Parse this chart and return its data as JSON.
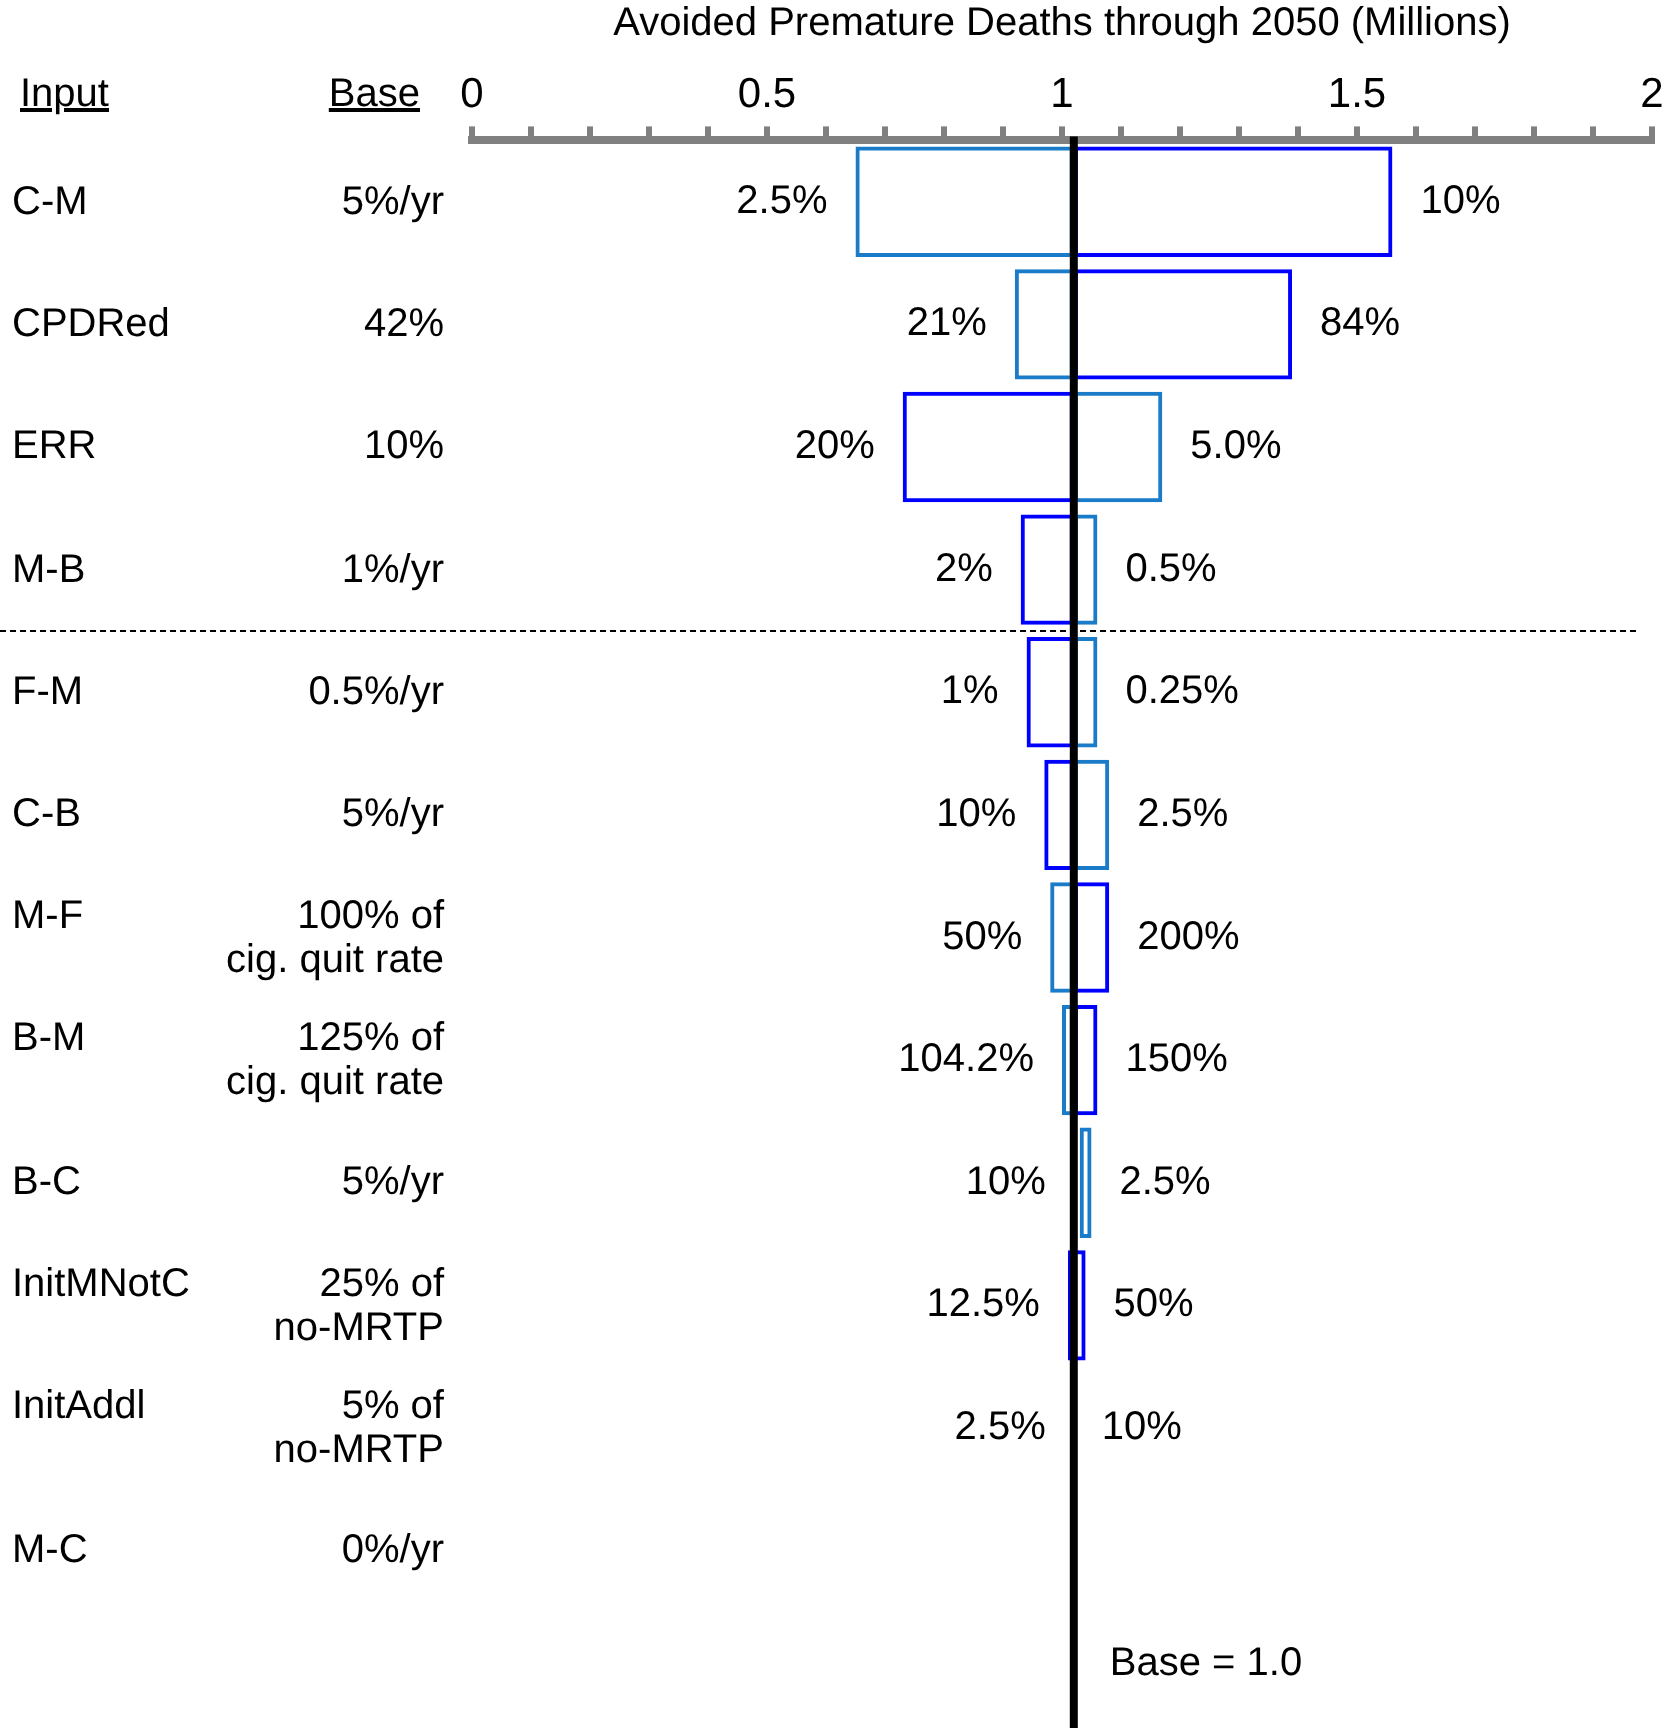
{
  "chart_data": {
    "type": "bar",
    "orientation": "horizontal",
    "xlabel": "Avoided Premature Deaths through 2050 (Millions)",
    "categories": [
      "C-M",
      "CPDRed",
      "ERR",
      "M-B",
      "F-M",
      "C-B",
      "M-F",
      "B-M",
      "B-C",
      "InitMNotC",
      "InitAddl",
      "M-C"
    ],
    "series": [
      {
        "base": [
          1.02,
          1.02,
          1.02,
          1.02,
          1.02,
          1.02,
          1.02,
          1.02,
          null,
          null,
          null,
          null
        ],
        "values": [
          -0.37,
          -0.1,
          -0.29,
          -0.09,
          -0.08,
          -0.05,
          -0.04,
          -0.02,
          null,
          null,
          null,
          null
        ],
        "colors": [
          "#1a7cc8",
          "#1a7cc8",
          "#0000ff",
          "#0000ff",
          "#0000ff",
          "#0000ff",
          "#1a7cc8",
          "#1a7cc8",
          "#0000ff",
          "#0000ff",
          "#0000ff",
          "#0000ff"
        ]
      },
      {
        "base": [
          1.02,
          1.02,
          1.02,
          1.02,
          1.02,
          1.02,
          1.02,
          1.02,
          1.03,
          1.01,
          null,
          null
        ],
        "values": [
          0.54,
          0.37,
          0.15,
          0.04,
          0.04,
          0.06,
          0.06,
          0.04,
          0.02,
          0.03,
          null,
          null
        ],
        "colors": [
          "#0000ff",
          "#0000ff",
          "#1a7cc8",
          "#1a7cc8",
          "#1a7cc8",
          "#1a7cc8",
          "#0000ff",
          "#0000ff",
          "#1a7cc8",
          "#0000ff",
          "#1a7cc8",
          "#1a7cc8"
        ]
      }
    ],
    "xlim": [
      0,
      2
    ],
    "xticks": [
      0,
      {
        "value": 0.1,
        "label": null
      },
      {
        "value": 0.2,
        "label": null
      },
      {
        "value": 0.3,
        "label": null
      },
      {
        "value": 0.4,
        "label": null
      },
      0.5,
      {
        "value": 0.6,
        "label": null
      },
      {
        "value": 0.7,
        "label": null
      },
      {
        "value": 0.8,
        "label": null
      },
      {
        "value": 0.9,
        "label": null
      },
      1,
      {
        "value": 1.1,
        "label": null
      },
      {
        "value": 1.2,
        "label": null
      },
      {
        "value": 1.3,
        "label": null
      },
      {
        "value": 1.4,
        "label": null
      },
      1.5,
      {
        "value": 1.6,
        "label": null
      },
      {
        "value": 1.7,
        "label": null
      },
      {
        "value": 1.8,
        "label": null
      },
      {
        "value": 1.9,
        "label": null
      },
      2
    ],
    "ref_lines": [
      {
        "axis": "x",
        "value": 1.02,
        "label": "Base = 1.0",
        "color": "#000000"
      }
    ],
    "annotations": [
      "Input",
      "Base",
      "5%/yr",
      "42%",
      "10%",
      "1%/yr",
      "0.5%/yr",
      "5%/yr",
      "100% of\ncig. quit rate",
      "125% of\ncig. quit rate",
      "5%/yr",
      "25% of\nno-MRTP",
      "5% of\nno-MRTP",
      "0%/yr",
      {
        "text": "2.5%",
        "x": 0.65,
        "y": "C-M"
      },
      {
        "text": "10%",
        "x": 1.56,
        "y": "C-M"
      },
      {
        "text": "21%",
        "x": 0.92,
        "y": "CPDRed"
      },
      {
        "text": "84%",
        "x": 1.39,
        "y": "CPDRed"
      },
      {
        "text": "20%",
        "x": 0.73,
        "y": "ERR"
      },
      {
        "text": "5.0%",
        "x": 1.17,
        "y": "ERR"
      },
      {
        "text": "2%",
        "x": 0.93,
        "y": "M-B"
      },
      {
        "text": "0.5%",
        "x": 1.06,
        "y": "M-B"
      },
      {
        "text": "1%",
        "x": 0.94,
        "y": "F-M"
      },
      {
        "text": "0.25%",
        "x": 1.06,
        "y": "F-M"
      },
      {
        "text": "10%",
        "x": 0.97,
        "y": "C-B"
      },
      {
        "text": "2.5%",
        "x": 1.08,
        "y": "C-B"
      },
      {
        "text": "50%",
        "x": 0.98,
        "y": "M-F"
      },
      {
        "text": "200%",
        "x": 1.08,
        "y": "M-F"
      },
      {
        "text": "104.2%",
        "x": 1.0,
        "y": "B-M"
      },
      {
        "text": "150%",
        "x": 1.06,
        "y": "B-M"
      },
      {
        "text": "10%",
        "x": 1.02,
        "y": "B-C"
      },
      {
        "text": "2.5%",
        "x": 1.05,
        "y": "B-C"
      },
      {
        "text": "12.5%",
        "x": 1.01,
        "y": "InitMNotC"
      },
      {
        "text": "50%",
        "x": 1.04,
        "y": "InitMNotC"
      },
      {
        "text": "2.5%",
        "x": 1.02,
        "y": "InitAddl"
      },
      {
        "text": "10%",
        "x": 1.02,
        "y": "InitAddl"
      }
    ],
    "grid": false,
    "legend": false
  }
}
